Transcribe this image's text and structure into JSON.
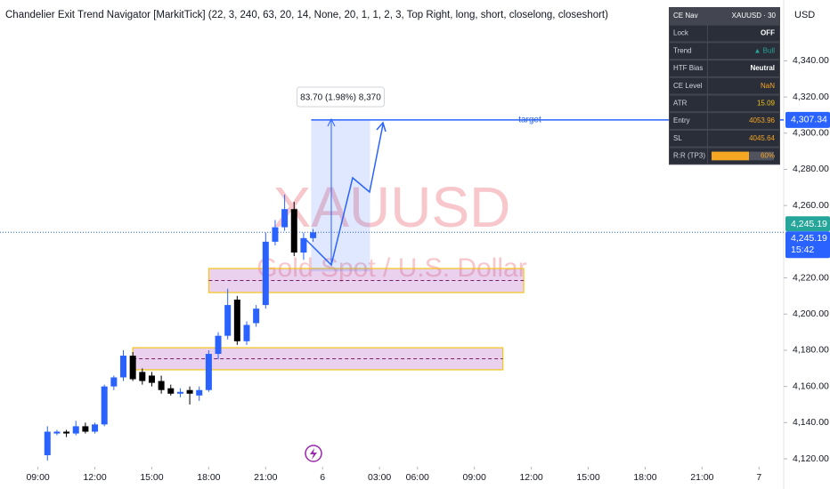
{
  "chart_data": {
    "type": "candlestick",
    "title": "Chandelier Exit Trend Navigator [MarkitTick] (22, 3, 240, 63, 20, 14, None, 20, 1, 1, 2, 3, Top Right, long, short, closelong, closeshort)",
    "symbol_watermark": "XAUUSD",
    "description_watermark": "Gold Spot / U.S. Dollar",
    "currency": "USD",
    "up_color": "#2962ff",
    "down_color": "#000000",
    "x": [
      1,
      2,
      3,
      4,
      5,
      6,
      7,
      8,
      9,
      10,
      11,
      12,
      13,
      14,
      15,
      16,
      17,
      18,
      19,
      20,
      21,
      22,
      23,
      24,
      25,
      26,
      27,
      28,
      29
    ],
    "open": [
      4122,
      4134,
      4135,
      4134,
      4138,
      4135,
      4139,
      4160,
      4165,
      4177,
      4168,
      4166,
      4163,
      4159,
      4156,
      4158,
      4155,
      4158,
      4178,
      4188,
      4208,
      4185,
      4195,
      4205,
      4240,
      4248,
      4258,
      4234,
      4242
    ],
    "high": [
      4138,
      4136,
      4136,
      4141,
      4140,
      4140,
      4161,
      4166,
      4180,
      4179,
      4170,
      4168,
      4166,
      4161,
      4159,
      4160,
      4160,
      4180,
      4190,
      4214,
      4210,
      4196,
      4205,
      4245,
      4252,
      4266,
      4262,
      4245,
      4247
    ],
    "low": [
      4119,
      4133,
      4132,
      4133,
      4134,
      4134,
      4138,
      4158,
      4163,
      4163,
      4161,
      4160,
      4156,
      4155,
      4154,
      4150,
      4152,
      4157,
      4175,
      4186,
      4183,
      4183,
      4193,
      4203,
      4238,
      4246,
      4232,
      4230,
      4240
    ],
    "close": [
      4135,
      4135,
      4134,
      4138,
      4135,
      4139,
      4160,
      4165,
      4177,
      4164,
      4163,
      4162,
      4158,
      4156,
      4157,
      4156,
      4158,
      4178,
      4188,
      4205,
      4185,
      4194,
      4203,
      4240,
      4248,
      4258,
      4234,
      4242,
      4245.19
    ],
    "xlim": [
      -4,
      78.6
    ],
    "xticks": [
      {
        "value": 0,
        "label": "09:00"
      },
      {
        "value": 6,
        "label": "12:00"
      },
      {
        "value": 12,
        "label": "15:00"
      },
      {
        "value": 18,
        "label": "18:00"
      },
      {
        "value": 24,
        "label": "21:00"
      },
      {
        "value": 30,
        "label": "6"
      },
      {
        "value": 36,
        "label": "03:00"
      },
      {
        "value": 40,
        "label": "06:00"
      },
      {
        "value": 46,
        "label": "09:00"
      },
      {
        "value": 52,
        "label": "12:00"
      },
      {
        "value": 58,
        "label": "15:00"
      },
      {
        "value": 64,
        "label": "18:00"
      },
      {
        "value": 70,
        "label": "21:00"
      },
      {
        "value": 76,
        "label": "7"
      }
    ],
    "ylim": [
      4115.6,
      4373.6
    ],
    "yticks": [
      {
        "value": 4120,
        "label": "4,120.00"
      },
      {
        "value": 4140,
        "label": "4,140.00"
      },
      {
        "value": 4160,
        "label": "4,160.00"
      },
      {
        "value": 4180,
        "label": "4,180.00"
      },
      {
        "value": 4200,
        "label": "4,200.00"
      },
      {
        "value": 4220,
        "label": "4,220.00"
      },
      {
        "value": 4260,
        "label": "4,260.00"
      },
      {
        "value": 4280,
        "label": "4,280.00"
      },
      {
        "value": 4300,
        "label": "4,300.00"
      },
      {
        "value": 4320,
        "label": "4,320.00"
      },
      {
        "value": 4340,
        "label": "4,340.00"
      }
    ],
    "target": {
      "value": 4307.34,
      "label": "target",
      "price_label": "4,307.34"
    },
    "last_price": {
      "value": 4245.19,
      "label": "4,245.19",
      "countdown": "15:42"
    },
    "zones": [
      {
        "start": 18,
        "end": 51.2,
        "low": 4211.9,
        "high": 4225.2
      },
      {
        "start": 10,
        "end": 49,
        "low": 4169.2,
        "high": 4181.4
      }
    ],
    "measure": {
      "label": "83.70 (1.98%) 8,370",
      "start": 28.8,
      "end": 35,
      "low": 4223.64,
      "high": 4307.34
    }
  },
  "table": {
    "header": [
      "CE Nav",
      "XAUUSD · 30"
    ],
    "rows": [
      [
        "Lock",
        "OFF"
      ],
      [
        "Trend",
        "▲ Bull"
      ],
      [
        "HTF Bias",
        "Neutral"
      ],
      [
        "CE Level",
        "NaN"
      ],
      [
        "ATR",
        "15.09"
      ],
      [
        "Entry",
        "4053.96"
      ],
      [
        "SL",
        "4045.64"
      ],
      [
        "R:R (TP3)"
      ]
    ],
    "progress": {
      "value": 60,
      "label": "60%"
    }
  }
}
